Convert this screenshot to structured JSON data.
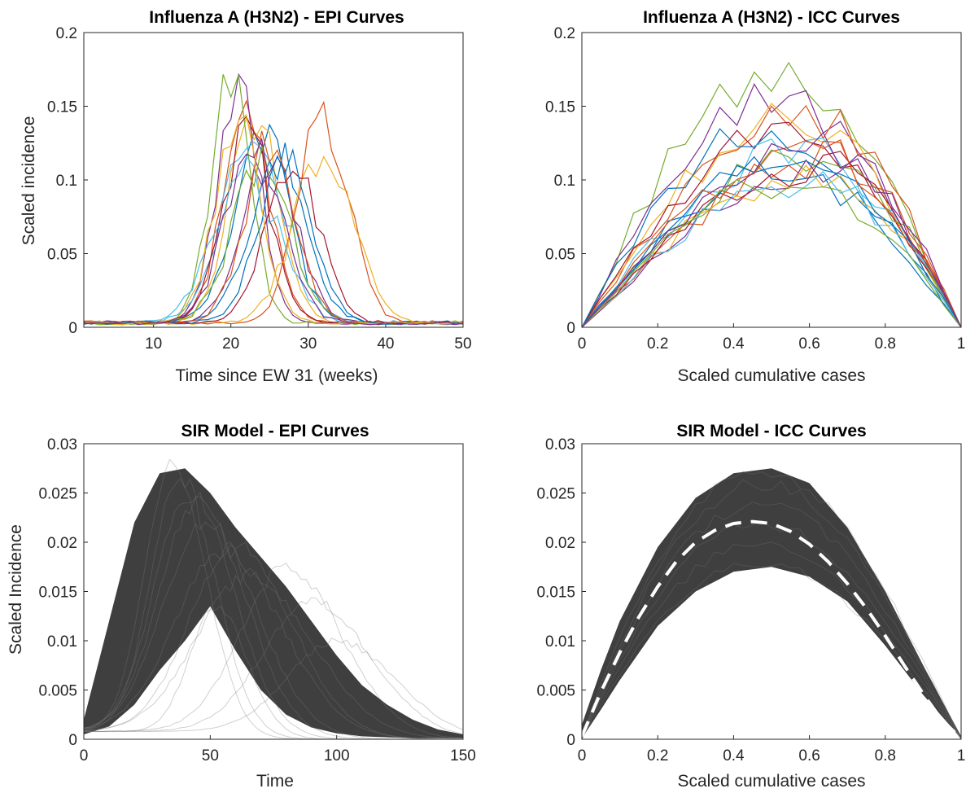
{
  "chart_data": [
    {
      "type": "line",
      "title": "Influenza A (H3N2) - EPI Curves",
      "xlabel": "Time since EW 31 (weeks)",
      "ylabel": "Scaled incidence",
      "xlim": [
        1,
        50
      ],
      "ylim": [
        0,
        0.2
      ],
      "xticks": [
        "10",
        "20",
        "30",
        "40",
        "50"
      ],
      "yticks": [
        "0",
        "0.05",
        "0.1",
        "0.15",
        "0.2"
      ],
      "grid": false,
      "legend": "none",
      "series": [
        {
          "color": "#0072BD",
          "peak_x": 24,
          "peak_y": 0.13,
          "width": 3.5
        },
        {
          "color": "#D95319",
          "peak_x": 22,
          "peak_y": 0.138,
          "width": 3.0
        },
        {
          "color": "#EDB120",
          "peak_x": 23,
          "peak_y": 0.143,
          "width": 3.2
        },
        {
          "color": "#7E2F8E",
          "peak_x": 21,
          "peak_y": 0.155,
          "width": 2.8
        },
        {
          "color": "#77AC30",
          "peak_x": 20,
          "peak_y": 0.17,
          "width": 2.5
        },
        {
          "color": "#4DBEEE",
          "peak_x": 23,
          "peak_y": 0.125,
          "width": 4.0
        },
        {
          "color": "#A2142F",
          "peak_x": 22,
          "peak_y": 0.133,
          "width": 3.0
        },
        {
          "color": "#0072BD",
          "peak_x": 26,
          "peak_y": 0.113,
          "width": 3.6
        },
        {
          "color": "#D95319",
          "peak_x": 32,
          "peak_y": 0.143,
          "width": 3.2
        },
        {
          "color": "#EDB120",
          "peak_x": 32,
          "peak_y": 0.12,
          "width": 3.8
        },
        {
          "color": "#7E2F8E",
          "peak_x": 25,
          "peak_y": 0.11,
          "width": 3.5
        },
        {
          "color": "#77AC30",
          "peak_x": 24,
          "peak_y": 0.105,
          "width": 3.8
        },
        {
          "color": "#4DBEEE",
          "peak_x": 22,
          "peak_y": 0.1,
          "width": 4.2
        },
        {
          "color": "#A2142F",
          "peak_x": 28,
          "peak_y": 0.105,
          "width": 3.4
        },
        {
          "color": "#D95319",
          "peak_x": 25,
          "peak_y": 0.12,
          "width": 3.3
        },
        {
          "color": "#0072BD",
          "peak_x": 27,
          "peak_y": 0.108,
          "width": 3.5
        },
        {
          "color": "#EDB120",
          "peak_x": 21,
          "peak_y": 0.13,
          "width": 3.0
        },
        {
          "color": "#7E2F8E",
          "peak_x": 23,
          "peak_y": 0.118,
          "width": 3.6
        }
      ]
    },
    {
      "type": "line",
      "title": "Influenza A (H3N2) - ICC Curves",
      "xlabel": "Scaled cumulative cases",
      "ylabel": "",
      "xlim": [
        0,
        1
      ],
      "ylim": [
        0,
        0.2
      ],
      "xticks": [
        "0",
        "0.2",
        "0.4",
        "0.6",
        "0.8",
        "1"
      ],
      "yticks": [
        "0",
        "0.05",
        "0.1",
        "0.15",
        "0.2"
      ],
      "grid": false,
      "legend": "none",
      "series": [
        {
          "color": "#77AC30",
          "peak_x": 0.5,
          "peak_y": 0.17
        },
        {
          "color": "#7E2F8E",
          "peak_x": 0.48,
          "peak_y": 0.155
        },
        {
          "color": "#D95319",
          "peak_x": 0.6,
          "peak_y": 0.143
        },
        {
          "color": "#EDB120",
          "peak_x": 0.55,
          "peak_y": 0.14
        },
        {
          "color": "#A2142F",
          "peak_x": 0.55,
          "peak_y": 0.133
        },
        {
          "color": "#0072BD",
          "peak_x": 0.45,
          "peak_y": 0.13
        },
        {
          "color": "#4DBEEE",
          "peak_x": 0.58,
          "peak_y": 0.12
        },
        {
          "color": "#77AC30",
          "peak_x": 0.62,
          "peak_y": 0.118
        },
        {
          "color": "#D95319",
          "peak_x": 0.66,
          "peak_y": 0.115
        },
        {
          "color": "#7E2F8E",
          "peak_x": 0.7,
          "peak_y": 0.112
        },
        {
          "color": "#0072BD",
          "peak_x": 0.52,
          "peak_y": 0.108
        },
        {
          "color": "#EDB120",
          "peak_x": 0.63,
          "peak_y": 0.105
        },
        {
          "color": "#4DBEEE",
          "peak_x": 0.6,
          "peak_y": 0.1
        },
        {
          "color": "#A2142F",
          "peak_x": 0.65,
          "peak_y": 0.11
        },
        {
          "color": "#0072BD",
          "peak_x": 0.57,
          "peak_y": 0.112
        },
        {
          "color": "#D95319",
          "peak_x": 0.6,
          "peak_y": 0.122
        },
        {
          "color": "#77AC30",
          "peak_x": 0.55,
          "peak_y": 0.1
        },
        {
          "color": "#7E2F8E",
          "peak_x": 0.62,
          "peak_y": 0.125
        }
      ]
    },
    {
      "type": "line",
      "title": "SIR Model - EPI Curves",
      "xlabel": "Time",
      "ylabel": "Scaled Incidence",
      "xlim": [
        0,
        150
      ],
      "ylim": [
        0,
        0.03
      ],
      "xticks": [
        "0",
        "50",
        "100",
        "150"
      ],
      "yticks": [
        "0",
        "0.005",
        "0.01",
        "0.015",
        "0.02",
        "0.025",
        "0.03"
      ],
      "grid": false,
      "legend": "none",
      "color": "#3f3f3f",
      "envelope": {
        "x": [
          0,
          10,
          20,
          30,
          40,
          50,
          60,
          70,
          80,
          90,
          100,
          110,
          120,
          130,
          140,
          150
        ],
        "upper": [
          0.002,
          0.012,
          0.022,
          0.027,
          0.0275,
          0.025,
          0.0215,
          0.0185,
          0.0155,
          0.012,
          0.0085,
          0.0055,
          0.0035,
          0.002,
          0.001,
          0.0005
        ],
        "lower": [
          0.0005,
          0.0013,
          0.0035,
          0.007,
          0.01,
          0.0135,
          0.009,
          0.005,
          0.0025,
          0.0012,
          0.0006,
          0.0003,
          0.0002,
          0.0001,
          0.0001,
          0.0001
        ]
      },
      "series": [
        {
          "peak_x": 38,
          "peak_y": 0.0265,
          "spread": 18
        },
        {
          "peak_x": 42,
          "peak_y": 0.025,
          "spread": 22
        },
        {
          "peak_x": 48,
          "peak_y": 0.022,
          "spread": 26
        },
        {
          "peak_x": 55,
          "peak_y": 0.019,
          "spread": 30
        },
        {
          "peak_x": 65,
          "peak_y": 0.0165,
          "spread": 32
        },
        {
          "peak_x": 52,
          "peak_y": 0.0135,
          "spread": 16
        },
        {
          "peak_x": 80,
          "peak_y": 0.0175,
          "spread": 28
        },
        {
          "peak_x": 90,
          "peak_y": 0.014,
          "spread": 30
        },
        {
          "peak_x": 100,
          "peak_y": 0.01,
          "spread": 30
        },
        {
          "peak_x": 35,
          "peak_y": 0.028,
          "spread": 17
        },
        {
          "peak_x": 45,
          "peak_y": 0.024,
          "spread": 24
        },
        {
          "peak_x": 60,
          "peak_y": 0.02,
          "spread": 28
        }
      ]
    },
    {
      "type": "line",
      "title": "SIR Model - ICC Curves",
      "xlabel": "Scaled cumulative cases",
      "ylabel": "",
      "xlim": [
        0,
        1
      ],
      "ylim": [
        0,
        0.03
      ],
      "xticks": [
        "0",
        "0.2",
        "0.4",
        "0.6",
        "0.8",
        "1"
      ],
      "yticks": [
        "0",
        "0.005",
        "0.01",
        "0.015",
        "0.02",
        "0.025",
        "0.03"
      ],
      "grid": false,
      "legend": "none",
      "color": "#3f3f3f",
      "envelope": {
        "x": [
          0,
          0.05,
          0.1,
          0.2,
          0.3,
          0.4,
          0.5,
          0.6,
          0.7,
          0.8,
          0.9,
          1
        ],
        "upper": [
          0.0015,
          0.007,
          0.012,
          0.0195,
          0.0245,
          0.027,
          0.0275,
          0.026,
          0.0215,
          0.015,
          0.0075,
          0.0003
        ],
        "lower": [
          0.0001,
          0.003,
          0.006,
          0.0115,
          0.015,
          0.017,
          0.0175,
          0.0165,
          0.014,
          0.0095,
          0.0045,
          0.0001
        ]
      },
      "series": [
        {
          "name_hidden": true,
          "scale": 0.0275
        },
        {
          "scale": 0.026
        },
        {
          "scale": 0.024
        },
        {
          "scale": 0.022
        },
        {
          "scale": 0.02
        },
        {
          "scale": 0.018
        }
      ],
      "mean_curve": {
        "style": "dashed",
        "color": "#ffffff",
        "x": [
          0,
          0.05,
          0.1,
          0.15,
          0.2,
          0.25,
          0.3,
          0.35,
          0.4,
          0.45,
          0.5,
          0.55,
          0.6,
          0.65,
          0.7,
          0.75,
          0.8,
          0.85,
          0.9,
          0.95,
          1
        ],
        "y": [
          0.0003,
          0.0048,
          0.0088,
          0.0124,
          0.0155,
          0.0181,
          0.02,
          0.0212,
          0.0219,
          0.0221,
          0.0219,
          0.0211,
          0.0198,
          0.018,
          0.0158,
          0.0133,
          0.0105,
          0.0075,
          0.0046,
          0.0019,
          0.0001
        ]
      }
    }
  ]
}
